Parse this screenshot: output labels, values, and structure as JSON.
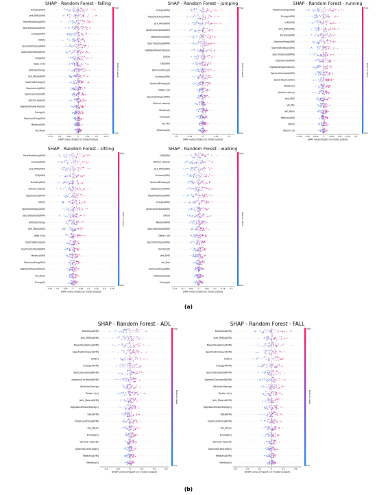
{
  "figure": {
    "caption_a": "(a)",
    "caption_b": "(b)",
    "xlabel": "SHAP value (impact on model output)",
    "colorbar": {
      "label": "Feature value",
      "high": "High",
      "low": "Low",
      "low_color": "#1e88e5",
      "high_color": "#ff0d57"
    }
  },
  "chart_data": [
    {
      "type": "beeswarm",
      "title": "SHAP - Random Forest - falling",
      "features": [
        "Kurtosis(AVM)",
        "Jerk_RMS(AVM)",
        "MeanPeakAmp(AVM)",
        "SpectralSpread(AVM)",
        "Energy(AVM)",
        "IQR(h)",
        "SpectralEntropy(AVM)",
        "SpectralCentroid(AVM)",
        "IQR(AVM)",
        "Delta H (h)",
        "AltitudeChange",
        "Jerk_Mean(AVM)",
        "SpectralEntropy(h)",
        "StepInterval(AVM)",
        "SpectralCentroid(h)",
        "Vertical velocity",
        "HighBandPowerRatio(h)",
        "Energy(h)",
        "DominantFreq(AVM)",
        "Median(AVM)",
        "Vel_Mean"
      ],
      "xticks": [
        -0.15,
        -0.1,
        -0.05,
        0.0,
        0.05,
        0.1,
        0.15
      ],
      "xlim": [
        -0.17,
        0.17
      ]
    },
    {
      "type": "beeswarm",
      "title": "SHAP - Random Forest - jumping",
      "features": [
        "Energy(AVM)",
        "MeanPeakAmp(AVM)",
        "Jerk_RMS(AVM)",
        "SpectralCentroid(AVM)",
        "StepInterval(AVM)",
        "SpectralSpread(AVM)",
        "HighBandPowerRatio(h)",
        "IQR(h)",
        "IQR(AVM)",
        "DominantFreq(h)",
        "Kurtosis(AVM)",
        "SpectralEntropy(h)",
        "Delta H (h)",
        "SpectralEntropy(AVM)",
        "Vertical velocity",
        "Median(h)",
        "Energy(h)",
        "Vel_Min",
        "Skewness(h)"
      ],
      "xticks": [
        -0.1,
        -0.05,
        0.0,
        0.05,
        0.1
      ],
      "xlim": [
        -0.12,
        0.12
      ]
    },
    {
      "type": "beeswarm",
      "title": "SHAP - Random Forest - running",
      "features": [
        "MeanPeakAmp(AVM)",
        "Energy(AVM)",
        "IQR(AVM)",
        "Jerk_RMS(AVM)",
        "Kurtosis(AVM)",
        "DominantFreq(AVM)",
        "SpectralEntropy(AVM)",
        "SpectralSpread(AVM)",
        "StepInterval(AVM)",
        "HighBandPowerRatio(h)",
        "SpectralCentroid(AVM)",
        "SpectralCentroid(h)",
        "Median(h)",
        "Vertical velocity",
        "Jerk_RMS",
        "Vel_Min",
        "Vel_Mean",
        "Median(AVM)",
        "IQR(h)",
        "Delta H (h)"
      ],
      "xticks": [
        -0.075,
        -0.05,
        -0.025,
        0.0,
        0.025,
        0.05,
        0.075,
        0.1
      ],
      "xlim": [
        -0.085,
        0.11
      ]
    },
    {
      "type": "beeswarm",
      "title": "SHAP - Random Forest - sitting",
      "features": [
        "MeanPeakAmp(AVM)",
        "Energy(AVM)",
        "Jerk_RMS(AVM)",
        "IQR(AVM)",
        "Kurtosis(AVM)",
        "Vertical velocity",
        "StepInterval(AVM)",
        "IQR(h)",
        "SpectralEntropy(AVM)",
        "SpectralSpread(AVM)",
        "AltitudeChange",
        "Jerk_Mean(AVM)",
        "Delta H (h)",
        "SpectralEntropy(h)",
        "SpectralCentroid(AVM)",
        "Median(AVM)",
        "DominantFreq(AVM)",
        "HighBandPowerRatio(h)",
        "Vel_Mean",
        "Energy(h)"
      ],
      "xticks": [
        -0.15,
        -0.1,
        -0.05,
        0.0,
        0.05,
        0.1,
        0.15,
        0.2,
        0.25
      ],
      "xlim": [
        -0.17,
        0.27
      ]
    },
    {
      "type": "beeswarm",
      "title": "SHAP - Random Forest - walking",
      "features": [
        "IQR(AVM)",
        "Vertical velocity",
        "Jerk_RMS(AVM)",
        "Kurtosis(AVM)",
        "SpectralEntropy(h)",
        "StepInterval(AVM)",
        "MeanPeakAmp(AVM)",
        "Energy(AVM)",
        "SpectralCentroid(AVM)",
        "IQR(h)",
        "Median(AVM)",
        "SpectralSpread(AVM)",
        "Delta H (h)",
        "SpectralEntropy(AVM)",
        "Kurtosis(h)",
        "Jerk_RMS",
        "Vel_Max",
        "DominantFreq(AVM)",
        "AltitudeChange",
        "Energy(h)"
      ],
      "xticks": [
        -0.15,
        -0.1,
        -0.05,
        0.0,
        0.05,
        0.1,
        0.15,
        0.2
      ],
      "xlim": [
        -0.17,
        0.22
      ]
    },
    {
      "type": "beeswarm",
      "title": "SHAP - Random Forest - ADL",
      "features": [
        "Kurtosis(AVM)",
        "Jerk_RMS(AVM)",
        "MeanPeakAmp(AVM)",
        "SpectralEntropy(AVM)",
        "IQR(h)",
        "Energy(AVM)",
        "SpectralSpread(AVM)",
        "SpectralCentroid(AVM)",
        "AltitudeChange",
        "Delta H (h)",
        "Jerk_Mean(AVM)",
        "HighBandPowerRatio(h)",
        "IQR(AVM)",
        "DominantFreq(AVM)",
        "Vel_Mean",
        "Energy(h)",
        "Vertical velocity",
        "SpectralCentroid(h)",
        "Median(AVM)",
        "Median(h)"
      ],
      "xticks": [
        -0.2,
        -0.1,
        0.0,
        0.1,
        0.2,
        0.3
      ],
      "xlim": [
        -0.25,
        0.32
      ]
    },
    {
      "type": "beeswarm",
      "title": "SHAP - Random Forest - FALL",
      "features": [
        "Kurtosis(AVM)",
        "Jerk_RMS(AVM)",
        "MeanPeakAmp(AVM)",
        "SpectralEntropy(AVM)",
        "IQR(h)",
        "Energy(AVM)",
        "SpectralSpread(AVM)",
        "SpectralCentroid(AVM)",
        "AltitudeChange",
        "Delta H (h)",
        "Jerk_Mean(AVM)",
        "HighBandPowerRatio(h)",
        "IQR(AVM)",
        "DominantFreq(AVM)",
        "Vel_Mean",
        "Energy(h)",
        "Vertical velocity",
        "SpectralCentroid(h)",
        "Median(AVM)",
        "Median(h)"
      ],
      "xticks": [
        -0.3,
        -0.2,
        -0.1,
        0.0,
        0.1,
        0.2
      ],
      "xlim": [
        -0.32,
        0.25
      ]
    }
  ]
}
